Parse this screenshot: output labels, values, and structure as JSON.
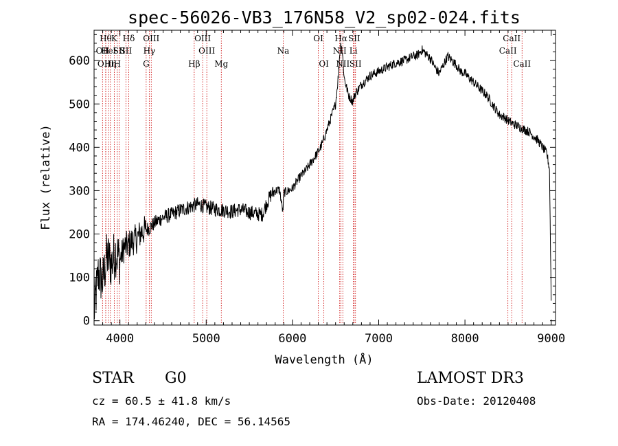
{
  "chart_data": {
    "type": "line",
    "title": "spec-56026-VB3_176N58_V2_sp02-024.fits",
    "xlabel": "Wavelength (Å)",
    "ylabel": "Flux (relative)",
    "xlim": [
      3700,
      9050
    ],
    "ylim": [
      -10,
      670
    ],
    "xticks": [
      4000,
      5000,
      6000,
      7000,
      8000,
      9000
    ],
    "yticks": [
      0,
      100,
      200,
      300,
      400,
      500,
      600
    ],
    "series": [
      {
        "name": "flux",
        "x": [
          3700,
          3750,
          3800,
          3850,
          3900,
          3950,
          4000,
          4050,
          4100,
          4150,
          4200,
          4250,
          4300,
          4350,
          4400,
          4450,
          4500,
          4550,
          4600,
          4650,
          4700,
          4750,
          4800,
          4850,
          4900,
          4950,
          5000,
          5050,
          5100,
          5150,
          5200,
          5250,
          5300,
          5350,
          5400,
          5450,
          5500,
          5550,
          5600,
          5650,
          5700,
          5750,
          5800,
          5850,
          5890,
          5900,
          5950,
          6000,
          6050,
          6100,
          6150,
          6200,
          6250,
          6300,
          6350,
          6400,
          6450,
          6500,
          6530,
          6550,
          6565,
          6580,
          6600,
          6650,
          6700,
          6720,
          6750,
          6800,
          6850,
          6900,
          6950,
          7000,
          7050,
          7100,
          7150,
          7200,
          7250,
          7300,
          7350,
          7400,
          7450,
          7500,
          7550,
          7600,
          7650,
          7700,
          7750,
          7800,
          7850,
          7900,
          7950,
          8000,
          8050,
          8100,
          8150,
          8200,
          8250,
          8300,
          8350,
          8400,
          8450,
          8500,
          8550,
          8600,
          8650,
          8700,
          8750,
          8800,
          8850,
          8900,
          8950,
          8980,
          9000
        ],
        "y": [
          20,
          110,
          90,
          150,
          130,
          160,
          140,
          170,
          175,
          185,
          190,
          205,
          210,
          215,
          225,
          232,
          238,
          242,
          245,
          250,
          255,
          258,
          262,
          265,
          268,
          266,
          262,
          260,
          258,
          256,
          255,
          254,
          252,
          255,
          256,
          253,
          250,
          248,
          246,
          245,
          270,
          290,
          300,
          302,
          250,
          295,
          300,
          305,
          320,
          335,
          345,
          360,
          375,
          390,
          410,
          440,
          470,
          500,
          560,
          620,
          645,
          615,
          560,
          520,
          505,
          520,
          530,
          545,
          555,
          565,
          570,
          575,
          580,
          585,
          590,
          595,
          598,
          600,
          605,
          610,
          612,
          625,
          615,
          605,
          585,
          570,
          590,
          610,
          600,
          590,
          575,
          570,
          560,
          550,
          540,
          530,
          520,
          505,
          490,
          475,
          470,
          462,
          455,
          450,
          445,
          440,
          435,
          425,
          415,
          400,
          385,
          350,
          50
        ]
      }
    ],
    "line_markers": [
      {
        "wavelength": 3798,
        "label": "OII",
        "row": 1
      },
      {
        "wavelength": 3835,
        "label": "Hθ",
        "row": 0
      },
      {
        "wavelength": 3835,
        "label": "OIII",
        "row": 2
      },
      {
        "wavelength": 3869,
        "label": "HeI",
        "row": 1
      },
      {
        "wavelength": 3889,
        "label": "Hη",
        "row": 2
      },
      {
        "wavelength": 3934,
        "label": "K",
        "row": 0
      },
      {
        "wavelength": 3969,
        "label": "H",
        "row": 2
      },
      {
        "wavelength": 3990,
        "label": "SII",
        "row": 1
      },
      {
        "wavelength": 4102,
        "label": "Hδ",
        "row": 0
      },
      {
        "wavelength": 4069,
        "label": "SII",
        "row": 1
      },
      {
        "wavelength": 4304,
        "label": "G",
        "row": 2
      },
      {
        "wavelength": 4340,
        "label": "Hγ",
        "row": 1
      },
      {
        "wavelength": 4363,
        "label": "OIII",
        "row": 0
      },
      {
        "wavelength": 4861,
        "label": "Hβ",
        "row": 2
      },
      {
        "wavelength": 4959,
        "label": "OIII",
        "row": 0
      },
      {
        "wavelength": 5007,
        "label": "OIII",
        "row": 1
      },
      {
        "wavelength": 5175,
        "label": "Mg",
        "row": 2
      },
      {
        "wavelength": 5893,
        "label": "Na",
        "row": 1
      },
      {
        "wavelength": 6300,
        "label": "OI",
        "row": 0
      },
      {
        "wavelength": 6364,
        "label": "OI",
        "row": 2
      },
      {
        "wavelength": 6548,
        "label": "NII",
        "row": 1
      },
      {
        "wavelength": 6563,
        "label": "Hα",
        "row": 0
      },
      {
        "wavelength": 6584,
        "label": "NII",
        "row": 2
      },
      {
        "wavelength": 6707,
        "label": "Li",
        "row": 1
      },
      {
        "wavelength": 6716,
        "label": "SII",
        "row": 0
      },
      {
        "wavelength": 6731,
        "label": "SII",
        "row": 2
      },
      {
        "wavelength": 8498,
        "label": "CaII",
        "row": 1
      },
      {
        "wavelength": 8542,
        "label": "CaII",
        "row": 0
      },
      {
        "wavelength": 8662,
        "label": "CaII",
        "row": 2
      }
    ]
  },
  "info": {
    "object_class": "STAR",
    "subclass": "G0",
    "survey": "LAMOST DR3",
    "cz": "cz = 60.5 ± 41.8 km/s",
    "obs_date": "Obs-Date: 20120408",
    "coords": "RA = 174.46240, DEC =  56.14565"
  },
  "colors": {
    "axis": "#000000",
    "spectrum": "#000000",
    "marker": "#cc0000"
  }
}
